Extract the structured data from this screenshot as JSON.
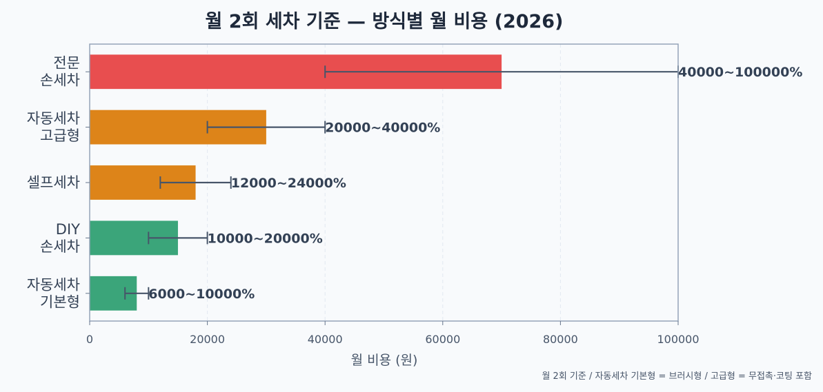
{
  "chart_data": {
    "type": "bar",
    "orientation": "horizontal",
    "title": "월 2회 세차 기준 — 방식별 월 비용 (2026)",
    "xlabel": "월 비용 (원)",
    "ylabel": "",
    "xlim": [
      0,
      100000
    ],
    "xticks": [
      "0",
      "20000",
      "40000",
      "60000",
      "80000",
      "100000"
    ],
    "grid": "vertical dashed",
    "categories": [
      [
        "전문",
        "손세차"
      ],
      [
        "자동세차",
        "고급형"
      ],
      [
        "셀프세차"
      ],
      [
        "DIY",
        "손세차"
      ],
      [
        "자동세차",
        "기본형"
      ]
    ],
    "values": [
      70000,
      30000,
      18000,
      15000,
      8000
    ],
    "ranges": [
      [
        40000,
        100000
      ],
      [
        20000,
        40000
      ],
      [
        12000,
        24000
      ],
      [
        10000,
        20000
      ],
      [
        6000,
        10000
      ]
    ],
    "range_labels": [
      "40000~100000%",
      "20000~40000%",
      "12000~24000%",
      "10000~20000%",
      "6000~10000%"
    ],
    "colors": [
      "#e84e4f",
      "#dd8419",
      "#dd8419",
      "#3ba57a",
      "#3ba57a"
    ],
    "errorbar_color": "#475569",
    "note": "월 2회 기준 / 자동세차 기본형 = 브러시형 / 고급형 = 무접촉·코팅 포함"
  }
}
